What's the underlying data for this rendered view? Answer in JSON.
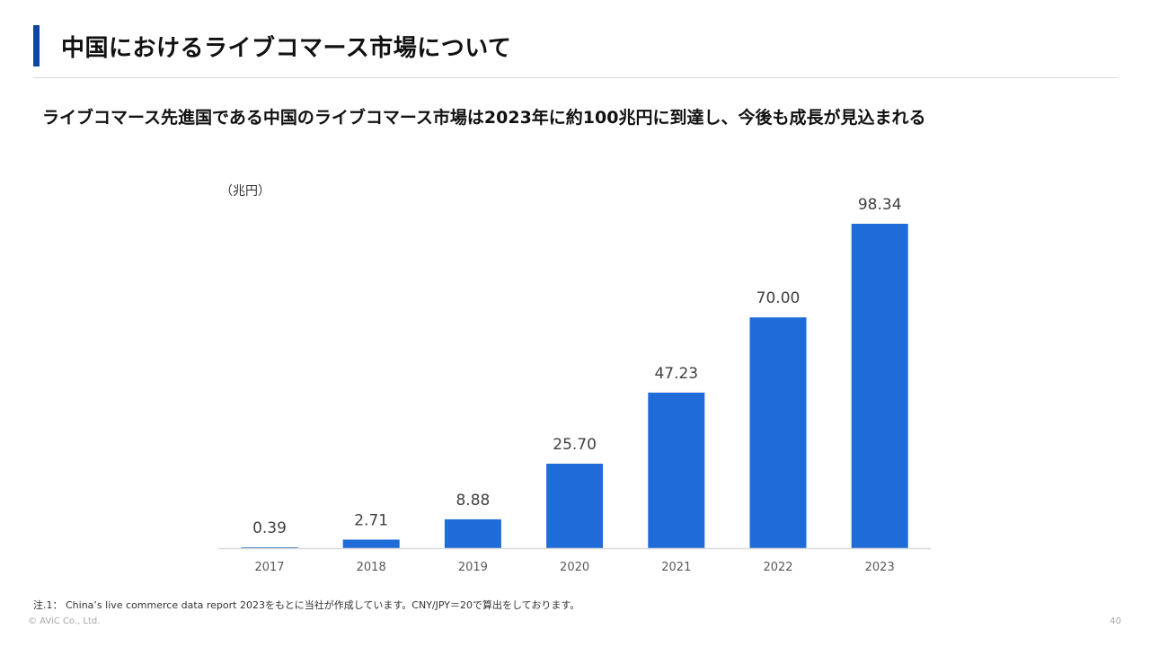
{
  "slide": {
    "title": "中国におけるライブコマース市場について",
    "subtitle": "ライブコマース先進国である中国のライブコマース市場は2023年に約100兆円に到達し、今後も成長が見込まれる",
    "footnote": "注.1： China’s live commerce data report 2023をもとに当社が作成しています。CNY/JPY＝20で算出をしております。",
    "copyright": "© AViC Co., Ltd.",
    "page_number": "40"
  },
  "colors": {
    "accent": "#0d47a1",
    "bar": "#1f6bd8",
    "bar_small": "#2e75b6",
    "axis": "#d9d9d9"
  },
  "chart_data": {
    "type": "bar",
    "title": "",
    "unit_label": "（兆円）",
    "xlabel": "",
    "ylabel": "",
    "categories": [
      "2017",
      "2018",
      "2019",
      "2020",
      "2021",
      "2022",
      "2023"
    ],
    "values": [
      0.39,
      2.71,
      8.88,
      25.7,
      47.23,
      70.0,
      98.34
    ],
    "data_labels": [
      "0.39",
      "2.71",
      "8.88",
      "25.70",
      "47.23",
      "70.00",
      "98.34"
    ],
    "ylim": [
      0,
      98.34
    ],
    "grid": false,
    "legend": "none"
  }
}
